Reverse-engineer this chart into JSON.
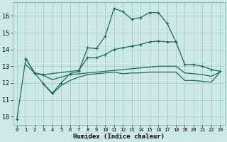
{
  "bg_color": "#cce8e8",
  "grid_color": "#aacccc",
  "line_color": "#1a6b5a",
  "xlabel": "Humidex (Indice chaleur)",
  "xlim": [
    -0.5,
    23.5
  ],
  "ylim": [
    9.5,
    16.8
  ],
  "yticks": [
    10,
    11,
    12,
    13,
    14,
    15,
    16
  ],
  "xticks": [
    0,
    1,
    2,
    3,
    4,
    5,
    6,
    7,
    8,
    9,
    10,
    11,
    12,
    13,
    14,
    15,
    16,
    17,
    18,
    19,
    20,
    21,
    22,
    23
  ],
  "curve1_x": [
    0,
    1,
    2,
    3,
    4,
    5,
    6,
    7,
    8,
    9,
    10,
    11,
    12,
    13,
    14,
    15,
    16,
    17,
    18
  ],
  "curve1_y": [
    9.85,
    13.45,
    12.6,
    11.95,
    11.4,
    12.0,
    12.55,
    12.7,
    14.1,
    14.05,
    14.8,
    16.45,
    16.25,
    15.8,
    15.9,
    16.2,
    16.2,
    15.55,
    14.45
  ],
  "curve2_x": [
    1,
    2,
    3,
    7,
    8,
    9,
    10,
    11,
    12,
    13,
    14,
    15,
    16,
    17,
    18,
    19,
    20,
    21,
    22,
    23
  ],
  "curve2_y": [
    13.45,
    12.6,
    12.5,
    12.75,
    13.5,
    13.5,
    13.7,
    14.0,
    14.1,
    14.2,
    14.3,
    14.45,
    14.5,
    14.45,
    14.45,
    13.1,
    13.1,
    13.0,
    12.8,
    12.7
  ],
  "curve3_x": [
    1,
    2,
    3,
    4,
    5,
    6,
    7,
    8,
    9,
    10,
    11,
    12,
    13,
    14,
    15,
    16,
    17,
    18,
    19,
    20,
    21,
    22,
    23
  ],
  "curve3_y": [
    13.1,
    12.6,
    12.45,
    12.2,
    12.35,
    12.5,
    12.55,
    12.6,
    12.65,
    12.7,
    12.75,
    12.8,
    12.85,
    12.9,
    12.95,
    13.0,
    13.0,
    13.0,
    12.6,
    12.55,
    12.5,
    12.4,
    12.65
  ],
  "curve4_x": [
    3,
    4,
    5,
    6,
    7,
    8,
    9,
    10,
    11,
    12,
    13,
    14,
    15,
    16,
    17,
    18,
    19,
    20,
    21,
    22,
    23
  ],
  "curve4_y": [
    11.95,
    11.35,
    11.85,
    12.15,
    12.35,
    12.5,
    12.55,
    12.6,
    12.65,
    12.55,
    12.6,
    12.6,
    12.65,
    12.65,
    12.65,
    12.65,
    12.15,
    12.15,
    12.1,
    12.05,
    12.65
  ]
}
